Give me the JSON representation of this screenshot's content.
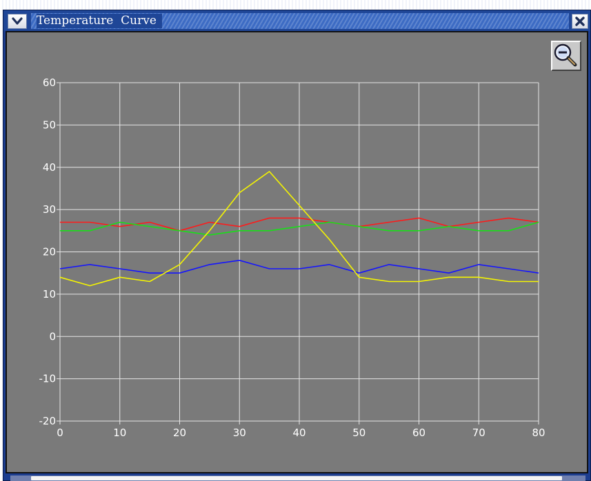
{
  "window": {
    "title": "Temperature  Curve",
    "menu_icon": "chevron-down-icon",
    "close_icon": "close-icon"
  },
  "toolbar": {
    "zoom_out_icon": "zoom-out-icon"
  },
  "colors": {
    "background": "#7a7a7a",
    "grid": "#e6e6e6",
    "red": "#ff1a1a",
    "green": "#18e018",
    "blue": "#1414ff",
    "yellow": "#f5f500"
  },
  "chart_data": {
    "type": "line",
    "xlim": [
      0,
      80
    ],
    "ylim": [
      -20,
      60
    ],
    "x_ticks": [
      "0",
      "10",
      "20",
      "30",
      "40",
      "50",
      "60",
      "70",
      "80"
    ],
    "y_ticks": [
      "60",
      "50",
      "40",
      "30",
      "20",
      "10",
      "0",
      "-10",
      "-20"
    ],
    "grid": true,
    "x": [
      0,
      5,
      10,
      15,
      20,
      25,
      30,
      35,
      40,
      45,
      50,
      55,
      60,
      65,
      70,
      75,
      80
    ],
    "series": [
      {
        "color": "#ff1a1a",
        "values": [
          27,
          27,
          26,
          27,
          25,
          27,
          26,
          28,
          28,
          27,
          26,
          27,
          28,
          26,
          27,
          28,
          27
        ]
      },
      {
        "color": "#18e018",
        "values": [
          25,
          25,
          27,
          26,
          25,
          24,
          25,
          25,
          26,
          27,
          26,
          25,
          25,
          26,
          25,
          25,
          27
        ]
      },
      {
        "color": "#1414ff",
        "values": [
          16,
          17,
          16,
          15,
          15,
          17,
          18,
          16,
          16,
          17,
          15,
          17,
          16,
          15,
          17,
          16,
          15
        ]
      },
      {
        "color": "#f5f500",
        "values": [
          14,
          12,
          14,
          13,
          17,
          25,
          34,
          39,
          31,
          23,
          14,
          13,
          13,
          14,
          14,
          13,
          13
        ]
      }
    ]
  }
}
